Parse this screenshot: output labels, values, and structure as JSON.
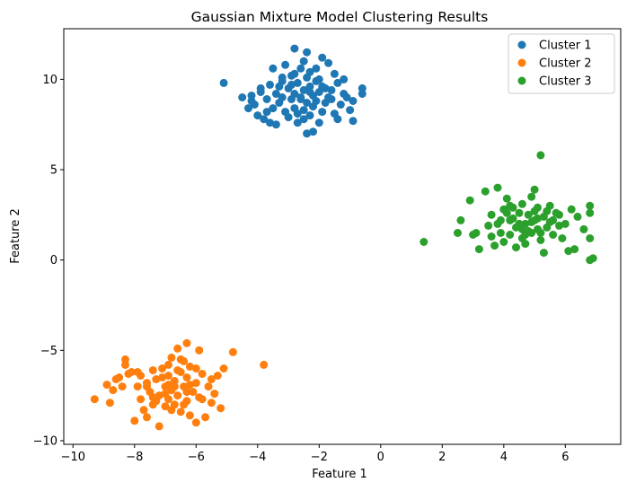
{
  "chart_data": {
    "type": "scatter",
    "title": "Gaussian Mixture Model Clustering Results",
    "xlabel": "Feature 1",
    "ylabel": "Feature 2",
    "xlim": [
      -10.3,
      7.8
    ],
    "ylim": [
      -10.2,
      12.8
    ],
    "xticks": [
      -10,
      -8,
      -6,
      -4,
      -2,
      0,
      2,
      4,
      6
    ],
    "yticks": [
      -10,
      -5,
      0,
      5,
      10
    ],
    "grid": false,
    "legend_position": "top-right",
    "series": [
      {
        "name": "Cluster 1",
        "color": "#1f77b4",
        "points": [
          [
            -5.1,
            9.8
          ],
          [
            -4.5,
            9.0
          ],
          [
            -4.3,
            8.4
          ],
          [
            -4.2,
            9.1
          ],
          [
            -4.1,
            8.6
          ],
          [
            -4.0,
            8.0
          ],
          [
            -3.9,
            9.3
          ],
          [
            -3.8,
            7.8
          ],
          [
            -3.7,
            8.9
          ],
          [
            -3.6,
            9.7
          ],
          [
            -3.6,
            7.6
          ],
          [
            -3.5,
            10.6
          ],
          [
            -3.5,
            8.4
          ],
          [
            -3.4,
            9.2
          ],
          [
            -3.4,
            7.5
          ],
          [
            -3.3,
            8.7
          ],
          [
            -3.2,
            10.1
          ],
          [
            -3.2,
            9.0
          ],
          [
            -3.1,
            8.2
          ],
          [
            -3.1,
            10.8
          ],
          [
            -3.0,
            9.5
          ],
          [
            -3.0,
            7.9
          ],
          [
            -2.9,
            8.9
          ],
          [
            -2.9,
            10.2
          ],
          [
            -2.8,
            11.7
          ],
          [
            -2.8,
            9.2
          ],
          [
            -2.8,
            8.4
          ],
          [
            -2.7,
            9.8
          ],
          [
            -2.7,
            7.6
          ],
          [
            -2.6,
            9.0
          ],
          [
            -2.6,
            10.6
          ],
          [
            -2.5,
            8.3
          ],
          [
            -2.5,
            9.4
          ],
          [
            -2.5,
            7.8
          ],
          [
            -2.4,
            10.1
          ],
          [
            -2.4,
            11.5
          ],
          [
            -2.4,
            8.7
          ],
          [
            -2.4,
            7.0
          ],
          [
            -2.3,
            9.6
          ],
          [
            -2.3,
            8.0
          ],
          [
            -2.3,
            10.4
          ],
          [
            -2.2,
            9.1
          ],
          [
            -2.2,
            8.5
          ],
          [
            -2.2,
            7.1
          ],
          [
            -2.1,
            9.9
          ],
          [
            -2.1,
            8.8
          ],
          [
            -2.1,
            10.6
          ],
          [
            -2.0,
            9.3
          ],
          [
            -2.0,
            7.6
          ],
          [
            -1.9,
            8.2
          ],
          [
            -1.9,
            11.2
          ],
          [
            -1.8,
            9.5
          ],
          [
            -1.8,
            8.7
          ],
          [
            -1.7,
            10.9
          ],
          [
            -1.7,
            9.0
          ],
          [
            -1.6,
            9.4
          ],
          [
            -1.5,
            8.1
          ],
          [
            -1.5,
            10.3
          ],
          [
            -1.4,
            7.8
          ],
          [
            -1.4,
            9.8
          ],
          [
            -1.3,
            8.6
          ],
          [
            -1.2,
            10.0
          ],
          [
            -1.2,
            9.2
          ],
          [
            -1.0,
            8.3
          ],
          [
            -0.9,
            8.8
          ],
          [
            -0.9,
            7.7
          ],
          [
            -0.6,
            9.5
          ],
          [
            -0.6,
            9.2
          ],
          [
            -3.2,
            9.9
          ],
          [
            -2.6,
            8.9
          ],
          [
            -2.9,
            9.7
          ],
          [
            -2.3,
            9.3
          ],
          [
            -1.9,
            9.6
          ],
          [
            -3.7,
            8.2
          ],
          [
            -4.2,
            8.8
          ],
          [
            -1.6,
            8.9
          ],
          [
            -2.8,
            10.3
          ],
          [
            -3.3,
            9.6
          ],
          [
            -2.0,
            10.0
          ],
          [
            -2.7,
            8.1
          ],
          [
            -1.1,
            9.0
          ],
          [
            -3.9,
            9.5
          ],
          [
            -2.5,
            11.0
          ]
        ]
      },
      {
        "name": "Cluster 2",
        "color": "#ff7f0e",
        "points": [
          [
            -9.3,
            -7.7
          ],
          [
            -8.9,
            -6.9
          ],
          [
            -8.8,
            -7.9
          ],
          [
            -8.7,
            -7.2
          ],
          [
            -8.5,
            -6.5
          ],
          [
            -8.4,
            -7.0
          ],
          [
            -8.3,
            -5.5
          ],
          [
            -8.3,
            -5.8
          ],
          [
            -8.2,
            -6.3
          ],
          [
            -8.1,
            -6.2
          ],
          [
            -8.0,
            -8.9
          ],
          [
            -7.9,
            -7.0
          ],
          [
            -7.8,
            -6.4
          ],
          [
            -7.8,
            -7.7
          ],
          [
            -7.7,
            -8.3
          ],
          [
            -7.6,
            -6.8
          ],
          [
            -7.6,
            -8.7
          ],
          [
            -7.5,
            -7.3
          ],
          [
            -7.4,
            -6.1
          ],
          [
            -7.4,
            -8.0
          ],
          [
            -7.3,
            -6.6
          ],
          [
            -7.2,
            -7.5
          ],
          [
            -7.2,
            -9.2
          ],
          [
            -7.1,
            -6.0
          ],
          [
            -7.0,
            -7.0
          ],
          [
            -7.0,
            -8.1
          ],
          [
            -6.9,
            -6.4
          ],
          [
            -6.9,
            -7.7
          ],
          [
            -6.8,
            -5.4
          ],
          [
            -6.8,
            -7.2
          ],
          [
            -6.7,
            -6.7
          ],
          [
            -6.7,
            -8.0
          ],
          [
            -6.6,
            -4.9
          ],
          [
            -6.6,
            -7.5
          ],
          [
            -6.5,
            -6.2
          ],
          [
            -6.5,
            -8.4
          ],
          [
            -6.4,
            -5.6
          ],
          [
            -6.4,
            -7.0
          ],
          [
            -6.3,
            -4.6
          ],
          [
            -6.3,
            -6.5
          ],
          [
            -6.3,
            -7.8
          ],
          [
            -6.2,
            -5.9
          ],
          [
            -6.2,
            -8.6
          ],
          [
            -6.1,
            -7.3
          ],
          [
            -6.0,
            -6.8
          ],
          [
            -6.0,
            -9.0
          ],
          [
            -5.9,
            -5.0
          ],
          [
            -5.9,
            -7.6
          ],
          [
            -5.8,
            -6.3
          ],
          [
            -5.7,
            -8.7
          ],
          [
            -5.6,
            -7.0
          ],
          [
            -5.5,
            -6.6
          ],
          [
            -5.4,
            -7.4
          ],
          [
            -5.3,
            -6.4
          ],
          [
            -5.2,
            -8.2
          ],
          [
            -5.1,
            -6.0
          ],
          [
            -4.8,
            -5.1
          ],
          [
            -3.8,
            -5.8
          ],
          [
            -6.9,
            -6.9
          ],
          [
            -7.3,
            -7.8
          ],
          [
            -6.6,
            -6.1
          ],
          [
            -7.0,
            -7.4
          ],
          [
            -6.4,
            -8.0
          ],
          [
            -7.9,
            -6.2
          ],
          [
            -6.2,
            -6.9
          ],
          [
            -6.8,
            -8.3
          ],
          [
            -7.6,
            -7.0
          ],
          [
            -6.5,
            -5.5
          ],
          [
            -5.8,
            -7.7
          ],
          [
            -7.1,
            -6.5
          ],
          [
            -5.5,
            -7.9
          ],
          [
            -6.7,
            -7.0
          ],
          [
            -8.6,
            -6.6
          ],
          [
            -6.0,
            -6.0
          ],
          [
            -7.4,
            -7.6
          ],
          [
            -6.3,
            -7.3
          ],
          [
            -6.9,
            -5.8
          ]
        ]
      },
      {
        "name": "Cluster 3",
        "color": "#2ca02c",
        "points": [
          [
            1.4,
            1.0
          ],
          [
            2.5,
            1.5
          ],
          [
            2.6,
            2.2
          ],
          [
            2.9,
            3.3
          ],
          [
            3.0,
            1.4
          ],
          [
            3.1,
            1.5
          ],
          [
            3.2,
            0.6
          ],
          [
            3.4,
            3.8
          ],
          [
            3.5,
            1.9
          ],
          [
            3.6,
            2.5
          ],
          [
            3.7,
            0.8
          ],
          [
            3.8,
            4.0
          ],
          [
            3.8,
            2.0
          ],
          [
            3.9,
            1.5
          ],
          [
            4.0,
            2.8
          ],
          [
            4.0,
            1.0
          ],
          [
            4.1,
            3.4
          ],
          [
            4.2,
            2.2
          ],
          [
            4.2,
            1.4
          ],
          [
            4.3,
            2.9
          ],
          [
            4.4,
            1.8
          ],
          [
            4.4,
            0.7
          ],
          [
            4.5,
            2.6
          ],
          [
            4.6,
            1.2
          ],
          [
            4.6,
            3.1
          ],
          [
            4.7,
            2.0
          ],
          [
            4.7,
            0.9
          ],
          [
            4.8,
            2.5
          ],
          [
            4.9,
            1.5
          ],
          [
            4.9,
            3.5
          ],
          [
            5.0,
            2.2
          ],
          [
            5.0,
            3.9
          ],
          [
            5.1,
            1.7
          ],
          [
            5.1,
            2.9
          ],
          [
            5.2,
            5.8
          ],
          [
            5.2,
            1.1
          ],
          [
            5.3,
            2.4
          ],
          [
            5.3,
            0.4
          ],
          [
            5.4,
            1.8
          ],
          [
            5.5,
            3.0
          ],
          [
            5.5,
            2.1
          ],
          [
            5.6,
            1.4
          ],
          [
            5.7,
            2.6
          ],
          [
            5.8,
            1.9
          ],
          [
            5.9,
            1.2
          ],
          [
            6.0,
            2.0
          ],
          [
            6.1,
            0.5
          ],
          [
            6.2,
            2.8
          ],
          [
            6.3,
            0.6
          ],
          [
            6.4,
            2.4
          ],
          [
            6.6,
            1.7
          ],
          [
            6.8,
            3.0
          ],
          [
            6.8,
            2.6
          ],
          [
            6.8,
            1.2
          ],
          [
            6.8,
            0.0
          ],
          [
            6.9,
            0.1
          ],
          [
            4.3,
            2.3
          ],
          [
            4.8,
            1.6
          ],
          [
            5.0,
            2.7
          ],
          [
            4.5,
            2.0
          ],
          [
            5.6,
            2.2
          ],
          [
            4.1,
            2.6
          ],
          [
            4.9,
            2.1
          ],
          [
            5.2,
            1.5
          ],
          [
            3.9,
            2.2
          ],
          [
            5.4,
            2.7
          ],
          [
            4.6,
            1.7
          ],
          [
            5.8,
            2.5
          ],
          [
            4.2,
            3.0
          ],
          [
            5.1,
            2.3
          ],
          [
            4.7,
            1.4
          ],
          [
            3.6,
            1.3
          ]
        ]
      }
    ]
  }
}
